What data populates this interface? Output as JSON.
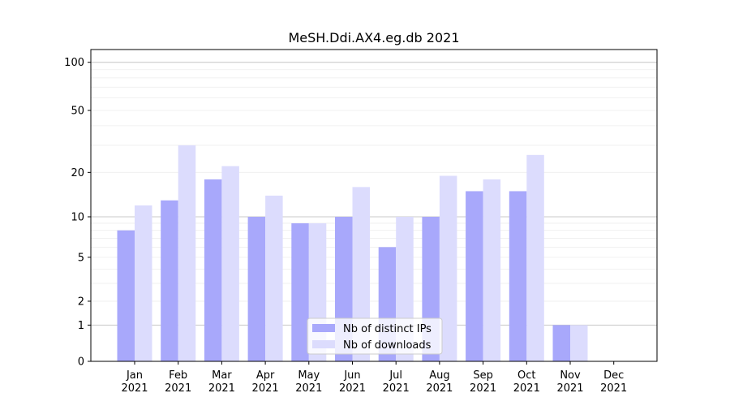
{
  "chart_data": {
    "type": "bar",
    "title": "MeSH.Ddi.AX4.eg.db 2021",
    "xlabel": "",
    "ylabel": "",
    "categories": [
      [
        "Jan",
        "2021"
      ],
      [
        "Feb",
        "2021"
      ],
      [
        "Mar",
        "2021"
      ],
      [
        "Apr",
        "2021"
      ],
      [
        "May",
        "2021"
      ],
      [
        "Jun",
        "2021"
      ],
      [
        "Jul",
        "2021"
      ],
      [
        "Aug",
        "2021"
      ],
      [
        "Sep",
        "2021"
      ],
      [
        "Oct",
        "2021"
      ],
      [
        "Nov",
        "2021"
      ],
      [
        "Dec",
        "2021"
      ]
    ],
    "series": [
      {
        "name": "Nb of distinct IPs",
        "color": "#a8a8fb",
        "values": [
          8,
          13,
          18,
          10,
          9,
          10,
          6,
          10,
          15,
          15,
          1,
          0
        ]
      },
      {
        "name": "Nb of downloads",
        "color": "#dcdcfd",
        "values": [
          12,
          30,
          22,
          14,
          9,
          16,
          10,
          19,
          18,
          26,
          1,
          0
        ]
      }
    ],
    "y_scale": "symlog",
    "y_ticks": [
      0,
      1,
      2,
      5,
      10,
      20,
      50,
      100
    ],
    "ylim": [
      0,
      120
    ],
    "legend": "bottom-center",
    "grid": true
  }
}
